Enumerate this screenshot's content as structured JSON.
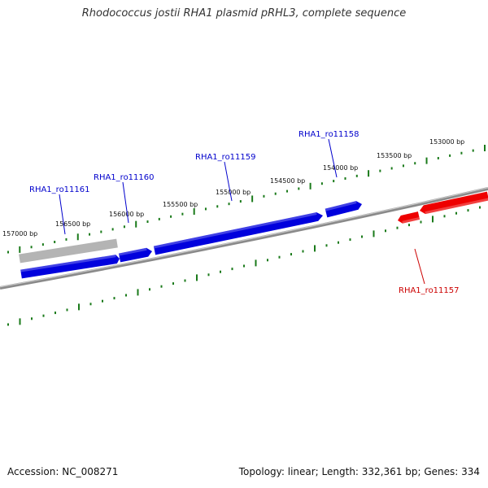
{
  "title": "Rhodococcus jostii RHA1 plasmid pRHL3, complete sequence",
  "footer": {
    "accession": "Accession: NC_008271",
    "summary": "Topology: linear; Length: 332,361 bp; Genes: 334"
  },
  "colors": {
    "forward_gene": "#0000dd",
    "reverse_gene": "#ee0000",
    "gray_feature": "#b4b4b4",
    "backbone": "#8a8a8a",
    "tick": "#1a7a1a",
    "label_line_blue": "#0000cc",
    "label_line_red": "#cc0000"
  },
  "scale_labels": [
    {
      "pos": 153000,
      "text": "153000 bp"
    },
    {
      "pos": 153500,
      "text": "153500 bp"
    },
    {
      "pos": 154000,
      "text": "154000 bp"
    },
    {
      "pos": 154500,
      "text": "154500 bp"
    },
    {
      "pos": 155000,
      "text": "155000 bp"
    },
    {
      "pos": 155500,
      "text": "155500 bp"
    },
    {
      "pos": 156000,
      "text": "156000 bp"
    },
    {
      "pos": 156500,
      "text": "156500 bp"
    },
    {
      "pos": 157000,
      "text": "157000 bp"
    }
  ],
  "gene_labels": [
    {
      "id": "RHA1_ro11161",
      "strand": "forward"
    },
    {
      "id": "RHA1_ro11160",
      "strand": "forward"
    },
    {
      "id": "RHA1_ro11159",
      "strand": "forward"
    },
    {
      "id": "RHA1_ro11158",
      "strand": "forward"
    },
    {
      "id": "RHA1_ro11157",
      "strand": "reverse"
    }
  ]
}
